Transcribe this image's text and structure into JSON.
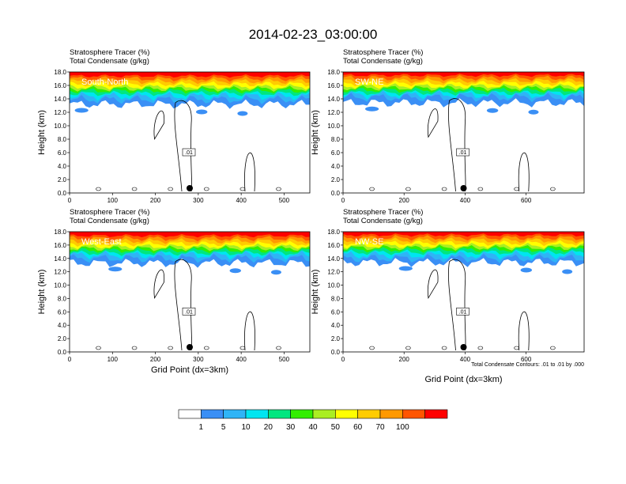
{
  "figure_title": "2014-02-23_03:00:00",
  "chart_data": [
    {
      "type": "heatmap",
      "panel_label": "South-North",
      "field_title": "Stratosphere Tracer   (%)",
      "contour_title": "Total Condensate   (g/kg)",
      "ylabel": "Height (km)",
      "xlabel": "",
      "ylim": [
        0,
        18
      ],
      "xlim": [
        0,
        560
      ],
      "y_ticks": [
        "0.0",
        "2.0",
        "4.0",
        "6.0",
        "8.0",
        "10.0",
        "12.0",
        "14.0",
        "16.0",
        "18.0"
      ],
      "x_ticks": [
        0,
        100,
        200,
        300,
        400,
        500
      ],
      "tracer_top_layers_km": {
        "100": 17.0,
        "70": 16.6,
        "60": 16.2,
        "50": 15.8,
        "40": 15.5,
        "30": 15.2,
        "20": 14.8,
        "10": 14.4,
        "5": 13.9,
        "1": 13.2
      },
      "contour_label": ".01",
      "marker_x": 280
    },
    {
      "type": "heatmap",
      "panel_label": "SW-NE",
      "field_title": "Stratosphere Tracer   (%)",
      "contour_title": "Total Condensate   (g/kg)",
      "ylabel": "Height (km)",
      "xlabel": "",
      "ylim": [
        0,
        18
      ],
      "xlim": [
        0,
        790
      ],
      "y_ticks": [
        "0.0",
        "2.0",
        "4.0",
        "6.0",
        "8.0",
        "10.0",
        "12.0",
        "14.0",
        "16.0",
        "18.0"
      ],
      "x_ticks": [
        0,
        200,
        400,
        600
      ],
      "tracer_top_layers_km": {
        "100": 17.1,
        "70": 16.7,
        "60": 16.3,
        "50": 15.9,
        "40": 15.6,
        "30": 15.3,
        "20": 14.9,
        "10": 14.6,
        "5": 14.2,
        "1": 13.4
      },
      "contour_label": ".01",
      "marker_x": 395
    },
    {
      "type": "heatmap",
      "panel_label": "West-East",
      "field_title": "Stratosphere Tracer   (%)",
      "contour_title": "Total Condensate   (g/kg)",
      "ylabel": "Height (km)",
      "xlabel": "Grid Point (dx=3km)",
      "ylim": [
        0,
        18
      ],
      "xlim": [
        0,
        560
      ],
      "y_ticks": [
        "0.0",
        "2.0",
        "4.0",
        "6.0",
        "8.0",
        "10.0",
        "12.0",
        "14.0",
        "16.0",
        "18.0"
      ],
      "x_ticks": [
        0,
        100,
        200,
        300,
        400,
        500
      ],
      "tracer_top_layers_km": {
        "100": 17.0,
        "70": 16.6,
        "60": 16.2,
        "50": 15.8,
        "40": 15.5,
        "30": 15.2,
        "20": 14.8,
        "10": 14.5,
        "5": 14.0,
        "1": 13.3
      },
      "contour_label": ".01",
      "marker_x": 280
    },
    {
      "type": "heatmap",
      "panel_label": "NW-SE",
      "field_title": "Stratosphere Tracer   (%)",
      "contour_title": "Total Condensate   (g/kg)",
      "ylabel": "Height (km)",
      "xlabel": "Grid Point (dx=3km)",
      "ylim": [
        0,
        18
      ],
      "xlim": [
        0,
        790
      ],
      "y_ticks": [
        "0.0",
        "2.0",
        "4.0",
        "6.0",
        "8.0",
        "10.0",
        "12.0",
        "14.0",
        "16.0",
        "18.0"
      ],
      "x_ticks": [
        0,
        200,
        400,
        600
      ],
      "tracer_top_layers_km": {
        "100": 17.1,
        "70": 16.7,
        "60": 16.3,
        "50": 15.9,
        "40": 15.6,
        "30": 15.3,
        "20": 14.9,
        "10": 14.5,
        "5": 14.0,
        "1": 13.4
      },
      "contour_label": ".01",
      "marker_x": 395
    }
  ],
  "contour_note": "Total Condensate Contours: .01 to .01 by .000",
  "colorbar": {
    "levels": [
      "1",
      "5",
      "10",
      "20",
      "30",
      "40",
      "50",
      "60",
      "70",
      "100"
    ],
    "colors": [
      "#ffffff",
      "#3a8ff5",
      "#2fb4f6",
      "#00e5f0",
      "#00e680",
      "#33ee00",
      "#aaee22",
      "#ffff00",
      "#ffcc00",
      "#ff9900",
      "#ff5500",
      "#ff0000"
    ]
  }
}
